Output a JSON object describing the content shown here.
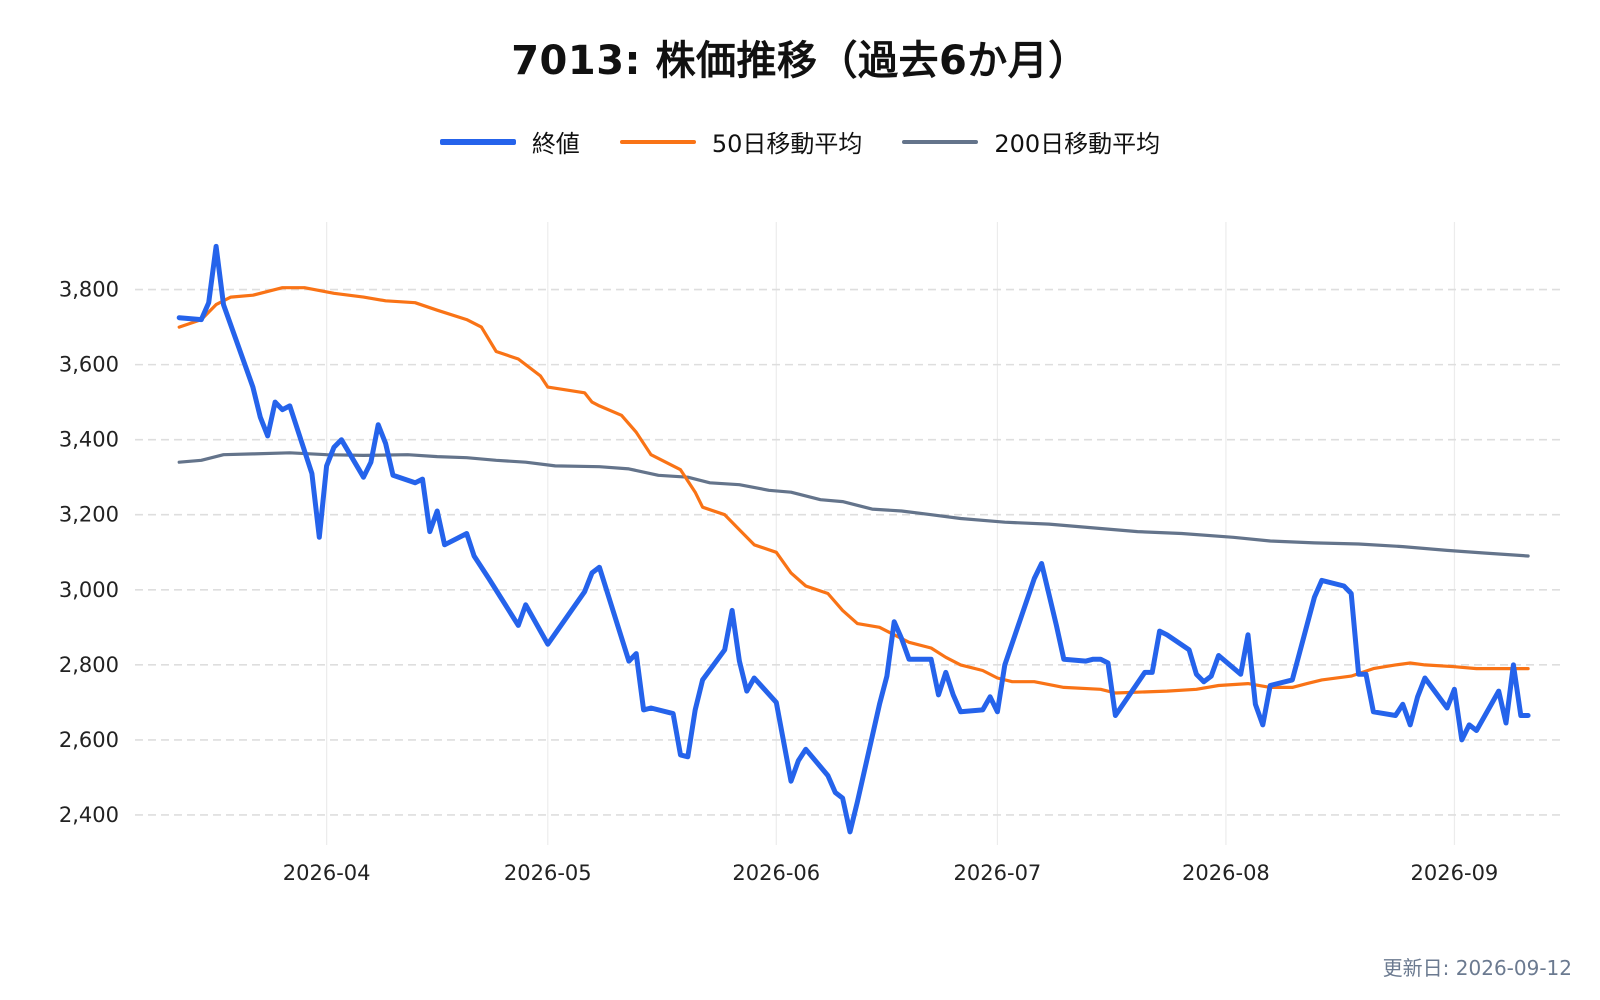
{
  "header": {
    "title": "7013: 株価推移（過去6か月）"
  },
  "footer": {
    "updated": "更新日: 2026-09-12"
  },
  "chart_data": {
    "type": "line",
    "title": "7013: 株価推移（過去6か月）",
    "xlabel": "",
    "ylabel": "",
    "ylim": [
      2320,
      3980
    ],
    "yticks": [
      2400,
      2600,
      2800,
      3000,
      3200,
      3400,
      3600,
      3800
    ],
    "ytick_labels": [
      "2,400",
      "2,600",
      "2,800",
      "3,000",
      "3,200",
      "3,400",
      "3,600",
      "3,800"
    ],
    "xlim": [
      "2026-03-06",
      "2026-09-16"
    ],
    "xticks": [
      "2026-04-01",
      "2026-05-01",
      "2026-06-01",
      "2026-07-01",
      "2026-08-01",
      "2026-09-01"
    ],
    "xtick_labels": [
      "2026-04",
      "2026-05",
      "2026-06",
      "2026-07",
      "2026-08",
      "2026-09"
    ],
    "grid": true,
    "legend_position": "top-center",
    "series": [
      {
        "name": "終値",
        "color": "#2563eb",
        "points": [
          [
            "2026-03-12",
            3725
          ],
          [
            "2026-03-15",
            3720
          ],
          [
            "2026-03-16",
            3765
          ],
          [
            "2026-03-17",
            3915
          ],
          [
            "2026-03-18",
            3760
          ],
          [
            "2026-03-20",
            3650
          ],
          [
            "2026-03-22",
            3540
          ],
          [
            "2026-03-23",
            3460
          ],
          [
            "2026-03-24",
            3410
          ],
          [
            "2026-03-25",
            3500
          ],
          [
            "2026-03-26",
            3480
          ],
          [
            "2026-03-27",
            3490
          ],
          [
            "2026-03-30",
            3310
          ],
          [
            "2026-03-31",
            3140
          ],
          [
            "2026-04-01",
            3330
          ],
          [
            "2026-04-02",
            3380
          ],
          [
            "2026-04-03",
            3400
          ],
          [
            "2026-04-06",
            3300
          ],
          [
            "2026-04-07",
            3340
          ],
          [
            "2026-04-08",
            3440
          ],
          [
            "2026-04-09",
            3390
          ],
          [
            "2026-04-10",
            3305
          ],
          [
            "2026-04-13",
            3285
          ],
          [
            "2026-04-14",
            3295
          ],
          [
            "2026-04-15",
            3155
          ],
          [
            "2026-04-16",
            3210
          ],
          [
            "2026-04-17",
            3120
          ],
          [
            "2026-04-20",
            3150
          ],
          [
            "2026-04-21",
            3090
          ],
          [
            "2026-04-23",
            3030
          ],
          [
            "2026-04-27",
            2905
          ],
          [
            "2026-04-28",
            2960
          ],
          [
            "2026-05-01",
            2855
          ],
          [
            "2026-05-06",
            2995
          ],
          [
            "2026-05-07",
            3045
          ],
          [
            "2026-05-08",
            3060
          ],
          [
            "2026-05-12",
            2810
          ],
          [
            "2026-05-13",
            2830
          ],
          [
            "2026-05-14",
            2680
          ],
          [
            "2026-05-15",
            2685
          ],
          [
            "2026-05-18",
            2670
          ],
          [
            "2026-05-19",
            2560
          ],
          [
            "2026-05-20",
            2555
          ],
          [
            "2026-05-21",
            2680
          ],
          [
            "2026-05-22",
            2760
          ],
          [
            "2026-05-25",
            2840
          ],
          [
            "2026-05-26",
            2945
          ],
          [
            "2026-05-27",
            2810
          ],
          [
            "2026-05-28",
            2730
          ],
          [
            "2026-05-29",
            2765
          ],
          [
            "2026-06-01",
            2700
          ],
          [
            "2026-06-03",
            2490
          ],
          [
            "2026-06-04",
            2545
          ],
          [
            "2026-06-05",
            2575
          ],
          [
            "2026-06-08",
            2505
          ],
          [
            "2026-06-09",
            2460
          ],
          [
            "2026-06-10",
            2445
          ],
          [
            "2026-06-11",
            2355
          ],
          [
            "2026-06-12",
            2435
          ],
          [
            "2026-06-15",
            2695
          ],
          [
            "2026-06-16",
            2770
          ],
          [
            "2026-06-17",
            2915
          ],
          [
            "2026-06-18",
            2870
          ],
          [
            "2026-06-19",
            2815
          ],
          [
            "2026-06-22",
            2815
          ],
          [
            "2026-06-23",
            2720
          ],
          [
            "2026-06-24",
            2780
          ],
          [
            "2026-06-25",
            2720
          ],
          [
            "2026-06-26",
            2675
          ],
          [
            "2026-06-29",
            2680
          ],
          [
            "2026-06-30",
            2715
          ],
          [
            "2026-07-01",
            2675
          ],
          [
            "2026-07-02",
            2800
          ],
          [
            "2026-07-06",
            3030
          ],
          [
            "2026-07-07",
            3070
          ],
          [
            "2026-07-09",
            2905
          ],
          [
            "2026-07-10",
            2815
          ],
          [
            "2026-07-13",
            2810
          ],
          [
            "2026-07-14",
            2815
          ],
          [
            "2026-07-15",
            2815
          ],
          [
            "2026-07-16",
            2805
          ],
          [
            "2026-07-17",
            2665
          ],
          [
            "2026-07-21",
            2780
          ],
          [
            "2026-07-22",
            2780
          ],
          [
            "2026-07-23",
            2890
          ],
          [
            "2026-07-24",
            2880
          ],
          [
            "2026-07-27",
            2840
          ],
          [
            "2026-07-28",
            2775
          ],
          [
            "2026-07-29",
            2755
          ],
          [
            "2026-07-30",
            2770
          ],
          [
            "2026-07-31",
            2825
          ],
          [
            "2026-08-03",
            2775
          ],
          [
            "2026-08-04",
            2880
          ],
          [
            "2026-08-05",
            2695
          ],
          [
            "2026-08-06",
            2640
          ],
          [
            "2026-08-07",
            2745
          ],
          [
            "2026-08-10",
            2760
          ],
          [
            "2026-08-13",
            2980
          ],
          [
            "2026-08-14",
            3025
          ],
          [
            "2026-08-17",
            3010
          ],
          [
            "2026-08-18",
            2990
          ],
          [
            "2026-08-19",
            2775
          ],
          [
            "2026-08-20",
            2775
          ],
          [
            "2026-08-21",
            2675
          ],
          [
            "2026-08-24",
            2665
          ],
          [
            "2026-08-25",
            2695
          ],
          [
            "2026-08-26",
            2640
          ],
          [
            "2026-08-27",
            2715
          ],
          [
            "2026-08-28",
            2765
          ],
          [
            "2026-08-31",
            2685
          ],
          [
            "2026-09-01",
            2735
          ],
          [
            "2026-09-02",
            2600
          ],
          [
            "2026-09-03",
            2640
          ],
          [
            "2026-09-04",
            2625
          ],
          [
            "2026-09-07",
            2730
          ],
          [
            "2026-09-08",
            2645
          ],
          [
            "2026-09-09",
            2800
          ],
          [
            "2026-09-10",
            2665
          ],
          [
            "2026-09-11",
            2665
          ]
        ]
      },
      {
        "name": "50日移動平均",
        "color": "#f97316",
        "points": [
          [
            "2026-03-12",
            3700
          ],
          [
            "2026-03-15",
            3720
          ],
          [
            "2026-03-17",
            3760
          ],
          [
            "2026-03-19",
            3780
          ],
          [
            "2026-03-22",
            3785
          ],
          [
            "2026-03-24",
            3795
          ],
          [
            "2026-03-26",
            3805
          ],
          [
            "2026-03-29",
            3805
          ],
          [
            "2026-04-02",
            3790
          ],
          [
            "2026-04-06",
            3780
          ],
          [
            "2026-04-09",
            3770
          ],
          [
            "2026-04-13",
            3765
          ],
          [
            "2026-04-16",
            3745
          ],
          [
            "2026-04-20",
            3720
          ],
          [
            "2026-04-22",
            3700
          ],
          [
            "2026-04-24",
            3635
          ],
          [
            "2026-04-27",
            3615
          ],
          [
            "2026-04-30",
            3570
          ],
          [
            "2026-05-01",
            3540
          ],
          [
            "2026-05-06",
            3525
          ],
          [
            "2026-05-07",
            3500
          ],
          [
            "2026-05-08",
            3490
          ],
          [
            "2026-05-11",
            3465
          ],
          [
            "2026-05-13",
            3420
          ],
          [
            "2026-05-15",
            3360
          ],
          [
            "2026-05-19",
            3320
          ],
          [
            "2026-05-21",
            3260
          ],
          [
            "2026-05-22",
            3220
          ],
          [
            "2026-05-25",
            3200
          ],
          [
            "2026-05-27",
            3160
          ],
          [
            "2026-05-29",
            3120
          ],
          [
            "2026-06-01",
            3100
          ],
          [
            "2026-06-03",
            3045
          ],
          [
            "2026-06-05",
            3010
          ],
          [
            "2026-06-08",
            2990
          ],
          [
            "2026-06-10",
            2945
          ],
          [
            "2026-06-12",
            2910
          ],
          [
            "2026-06-15",
            2900
          ],
          [
            "2026-06-17",
            2880
          ],
          [
            "2026-06-19",
            2860
          ],
          [
            "2026-06-22",
            2845
          ],
          [
            "2026-06-24",
            2820
          ],
          [
            "2026-06-26",
            2800
          ],
          [
            "2026-06-29",
            2785
          ],
          [
            "2026-07-01",
            2765
          ],
          [
            "2026-07-03",
            2755
          ],
          [
            "2026-07-06",
            2755
          ],
          [
            "2026-07-10",
            2740
          ],
          [
            "2026-07-15",
            2735
          ],
          [
            "2026-07-17",
            2725
          ],
          [
            "2026-07-24",
            2730
          ],
          [
            "2026-07-28",
            2735
          ],
          [
            "2026-07-31",
            2745
          ],
          [
            "2026-08-04",
            2750
          ],
          [
            "2026-08-07",
            2740
          ],
          [
            "2026-08-10",
            2740
          ],
          [
            "2026-08-12",
            2750
          ],
          [
            "2026-08-14",
            2760
          ],
          [
            "2026-08-18",
            2770
          ],
          [
            "2026-08-21",
            2790
          ],
          [
            "2026-08-24",
            2800
          ],
          [
            "2026-08-26",
            2805
          ],
          [
            "2026-08-28",
            2800
          ],
          [
            "2026-09-01",
            2795
          ],
          [
            "2026-09-04",
            2790
          ],
          [
            "2026-09-07",
            2790
          ],
          [
            "2026-09-11",
            2790
          ]
        ]
      },
      {
        "name": "200日移動平均",
        "color": "#64748b",
        "points": [
          [
            "2026-03-12",
            3340
          ],
          [
            "2026-03-15",
            3345
          ],
          [
            "2026-03-18",
            3360
          ],
          [
            "2026-03-22",
            3362
          ],
          [
            "2026-03-27",
            3365
          ],
          [
            "2026-04-01",
            3360
          ],
          [
            "2026-04-06",
            3358
          ],
          [
            "2026-04-12",
            3360
          ],
          [
            "2026-04-16",
            3355
          ],
          [
            "2026-04-20",
            3352
          ],
          [
            "2026-04-24",
            3345
          ],
          [
            "2026-04-28",
            3340
          ],
          [
            "2026-05-02",
            3330
          ],
          [
            "2026-05-08",
            3328
          ],
          [
            "2026-05-12",
            3322
          ],
          [
            "2026-05-16",
            3305
          ],
          [
            "2026-05-20",
            3300
          ],
          [
            "2026-05-23",
            3285
          ],
          [
            "2026-05-27",
            3280
          ],
          [
            "2026-05-31",
            3265
          ],
          [
            "2026-06-03",
            3260
          ],
          [
            "2026-06-07",
            3240
          ],
          [
            "2026-06-10",
            3235
          ],
          [
            "2026-06-14",
            3215
          ],
          [
            "2026-06-18",
            3210
          ],
          [
            "2026-06-22",
            3200
          ],
          [
            "2026-06-26",
            3190
          ],
          [
            "2026-07-02",
            3180
          ],
          [
            "2026-07-08",
            3175
          ],
          [
            "2026-07-14",
            3165
          ],
          [
            "2026-07-20",
            3155
          ],
          [
            "2026-07-26",
            3150
          ],
          [
            "2026-08-02",
            3140
          ],
          [
            "2026-08-07",
            3130
          ],
          [
            "2026-08-13",
            3125
          ],
          [
            "2026-08-19",
            3122
          ],
          [
            "2026-08-25",
            3115
          ],
          [
            "2026-08-31",
            3105
          ],
          [
            "2026-09-05",
            3098
          ],
          [
            "2026-09-11",
            3090
          ]
        ]
      }
    ]
  }
}
